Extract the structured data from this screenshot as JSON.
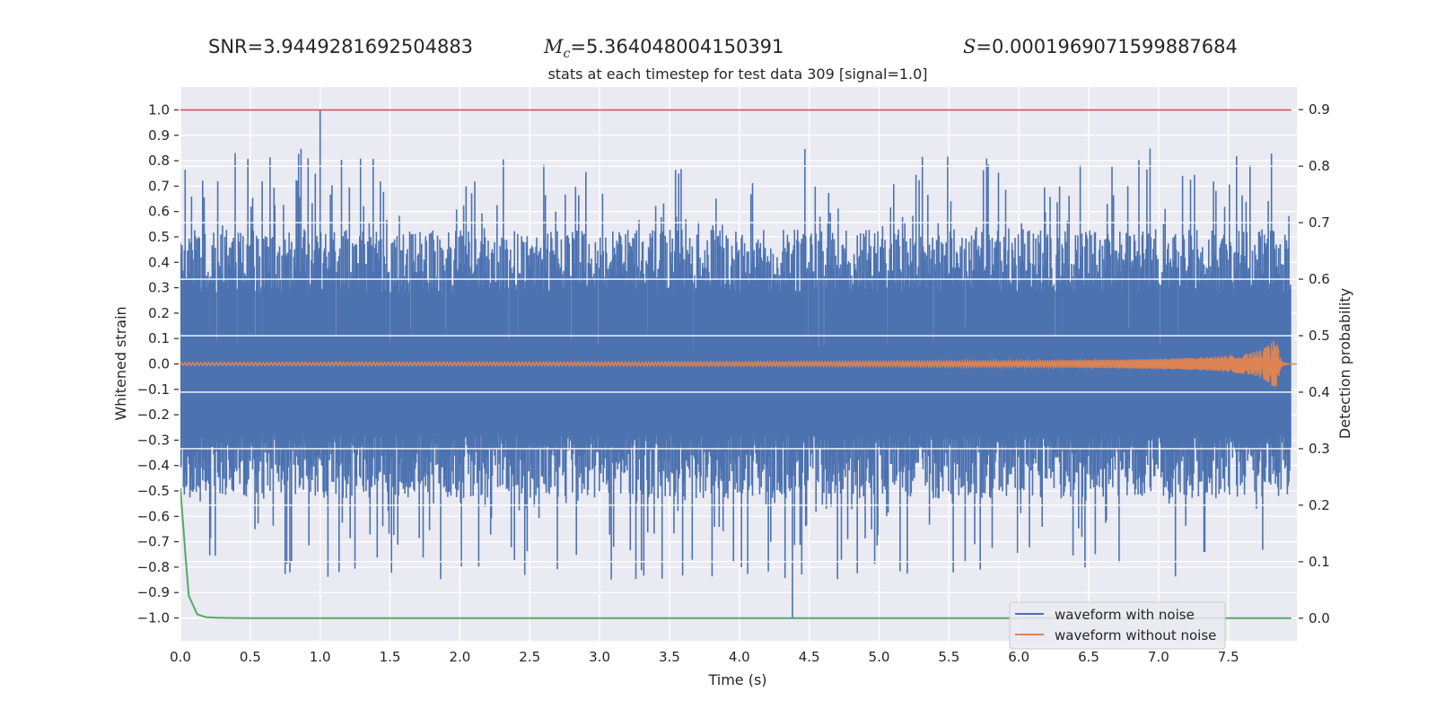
{
  "header": {
    "snr_label": "SNR=",
    "snr_value": "3.9449281692504883",
    "mc_symbol": "M",
    "mc_sub": "c",
    "mc_value": "=5.364048004150391",
    "s_symbol": "S",
    "s_value": "=0.0001969071599887684"
  },
  "chart_data": {
    "type": "line",
    "title": "stats at each timestep for test data 309 [signal=1.0]",
    "xlabel": "Time (s)",
    "ylabel": "Whitened strain",
    "y2label": "Detection probability",
    "xlim": [
      0.0,
      7.99
    ],
    "ylim": [
      -1.09,
      1.09
    ],
    "y2lim": [
      -0.04,
      0.94
    ],
    "xticks": [
      "0.0",
      "0.5",
      "1.0",
      "1.5",
      "2.0",
      "2.5",
      "3.0",
      "3.5",
      "4.0",
      "4.5",
      "5.0",
      "5.5",
      "6.0",
      "6.5",
      "7.0",
      "7.5"
    ],
    "yticks": [
      "1.0",
      "0.9",
      "0.8",
      "0.7",
      "0.6",
      "0.5",
      "0.4",
      "0.3",
      "0.2",
      "0.1",
      "0.0",
      "−0.1",
      "−0.2",
      "−0.3",
      "−0.4",
      "−0.5",
      "−0.6",
      "−0.7",
      "−0.8",
      "−0.9",
      "−1.0"
    ],
    "y2ticks": [
      "0.9",
      "0.8",
      "0.7",
      "0.6",
      "0.5",
      "0.4",
      "0.3",
      "0.2",
      "0.1",
      "0.0"
    ],
    "grid": true,
    "legend_position": "lower-right",
    "series": [
      {
        "name": "waveform with noise",
        "color": "#4c72b0",
        "axis": "left",
        "description_values": {
          "peak_max_at_x": 1.0,
          "peak_max": 1.0,
          "peak_min_at_x": 4.38,
          "peak_min": -1.0
        }
      },
      {
        "name": "waveform without noise",
        "color": "#dd8452",
        "axis": "left",
        "description_values": {
          "merger_x": 7.85,
          "merger_peak": 0.1
        }
      },
      {
        "name": "",
        "color": "#55a868",
        "axis": "right",
        "x": [
          0.0,
          0.04,
          0.06,
          0.12,
          0.18,
          0.25,
          0.35,
          0.5,
          1.0,
          7.95
        ],
        "values": [
          0.23,
          0.1,
          0.04,
          0.007,
          0.002,
          0.001,
          0.0005,
          0.0,
          0.0,
          0.0
        ]
      },
      {
        "name": "",
        "color": "#c44e52",
        "axis": "left",
        "x": [
          0.0,
          7.95
        ],
        "values": [
          1.0,
          1.0
        ]
      }
    ]
  }
}
